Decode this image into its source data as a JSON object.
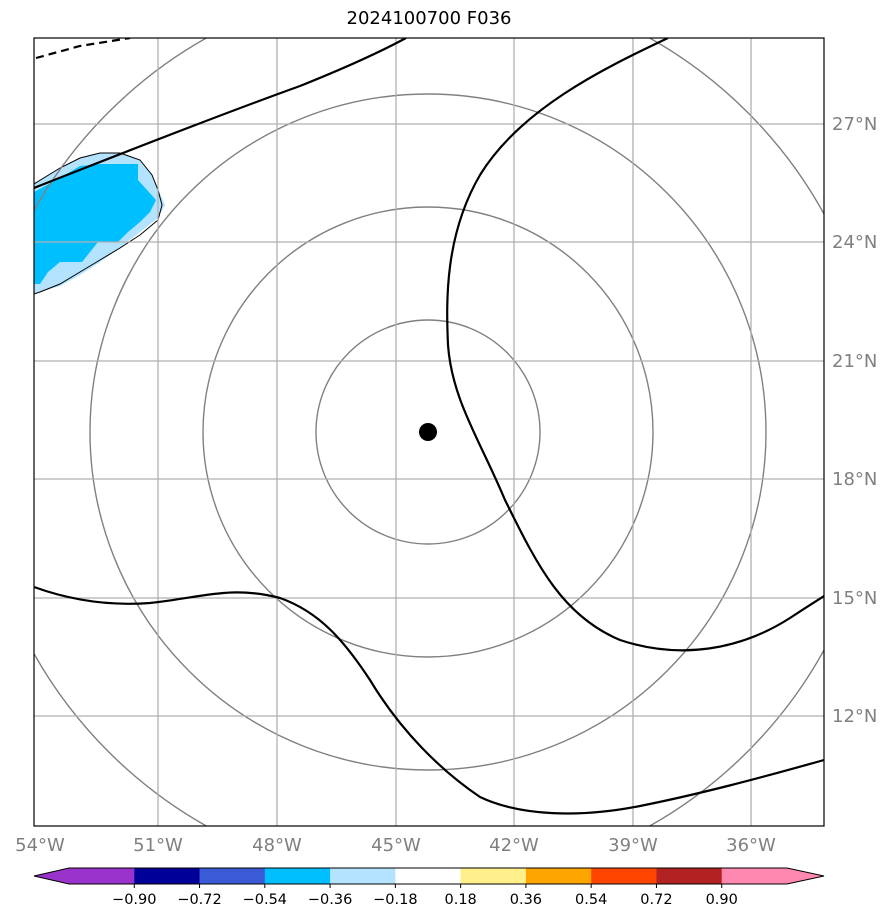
{
  "title": "2024100700 F036",
  "map": {
    "projection": "lat-lon",
    "lon_range": [
      -54,
      -34
    ],
    "lat_range": [
      9.8,
      29.8
    ],
    "gridlines": true,
    "x_tick_labels": [
      "54°W",
      "51°W",
      "48°W",
      "45°W",
      "42°W",
      "39°W",
      "36°W"
    ],
    "y_tick_labels": [
      "27°N",
      "24°N",
      "21°N",
      "18°N",
      "15°N",
      "12°N"
    ],
    "center_marker": {
      "lon": -44.2,
      "lat": 19.2,
      "color": "#000000"
    },
    "range_ring_color": "#808080",
    "contour_color": "#000000",
    "shaded_feature": {
      "description_colors": [
        "#b3e3ff",
        "#00bfff"
      ],
      "location": "northwest"
    }
  },
  "colorbar": {
    "colors": [
      "#9933cc",
      "#000099",
      "#3b5bd6",
      "#00bfff",
      "#b3e3ff",
      "#ffffff",
      "#fff08c",
      "#ffa500",
      "#ff4500",
      "#b22222",
      "#ff88b0"
    ],
    "labels": [
      "−0.90",
      "−0.72",
      "−0.54",
      "−0.36",
      "−0.18",
      "0.18",
      "0.36",
      "0.54",
      "0.72",
      "0.90"
    ],
    "extend": "both"
  }
}
